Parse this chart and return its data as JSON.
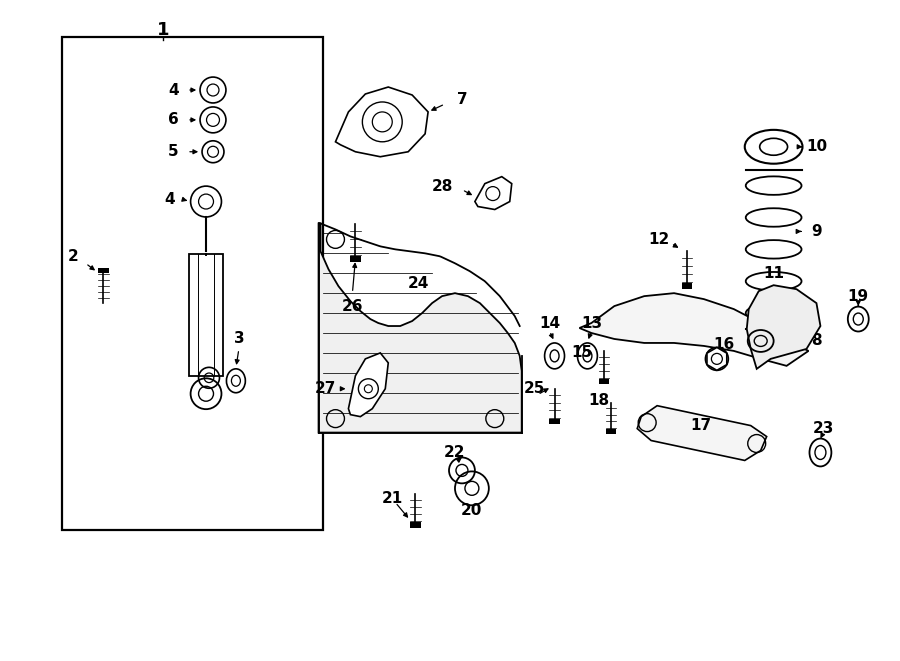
{
  "bg": "#ffffff",
  "lc": "#000000",
  "fig_w": 9.0,
  "fig_h": 6.61,
  "dpi": 100
}
